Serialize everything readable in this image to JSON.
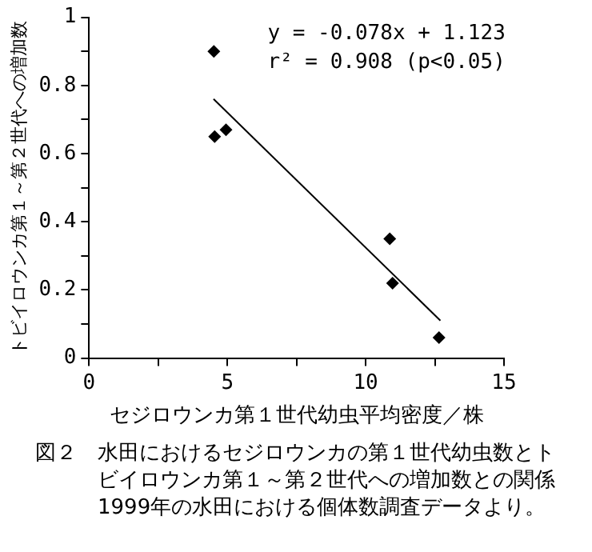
{
  "chart_data": {
    "type": "scatter",
    "xlabel": "セジロウンカ第１世代幼虫平均密度／株",
    "ylabel": "トビイロウンカ第１～第２世代への増加数",
    "series": [
      {
        "color": "#000000",
        "marker": "diamond",
        "x": [
          4.51,
          4.54,
          4.95,
          10.87,
          10.97,
          12.65
        ],
        "values": [
          0.9,
          0.65,
          0.67,
          0.35,
          0.22,
          0.06
        ]
      },
      {
        "type": "line",
        "color": "#000000",
        "marker": "none",
        "line_style": "solid",
        "x": [
          4.5,
          12.7
        ],
        "values": [
          0.76,
          0.11
        ]
      }
    ],
    "xlim": [
      0,
      15
    ],
    "xticks": [
      0,
      {
        "value": 2.5,
        "label": null
      },
      5,
      {
        "value": 7.5,
        "label": null
      },
      10,
      {
        "value": 12.5,
        "label": null
      },
      15
    ],
    "ylim": [
      0,
      1
    ],
    "yticks": [
      0,
      {
        "value": 0.1,
        "label": null
      },
      0.2,
      {
        "value": 0.3,
        "label": null
      },
      0.4,
      {
        "value": 0.5,
        "label": null
      },
      0.6,
      {
        "value": 0.7,
        "label": null
      },
      0.8,
      {
        "value": 0.9,
        "label": null
      },
      1
    ],
    "grid": false,
    "legend": false,
    "annotations": [
      "y = -0.078x + 1.123",
      "r² = 0.908 (p<0.05)",
      "図２　水田におけるセジロウンカの第１世代幼虫数とトビイロウンカ第１～第２世代への増加数との関係",
      "1999年の水田における個体数調査データより。"
    ]
  }
}
